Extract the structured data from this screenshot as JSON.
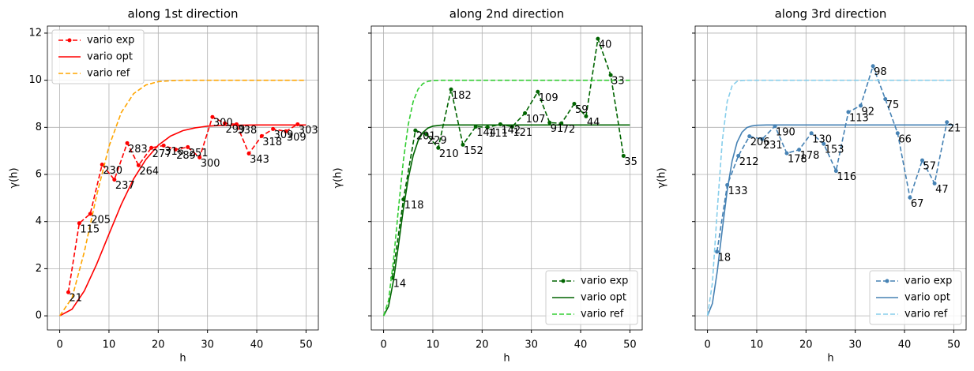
{
  "chart_data": [
    {
      "type": "line",
      "title": "along 1st direction",
      "xlabel": "h",
      "ylabel": "γ(h)",
      "xlim": [
        -2.5,
        52.5
      ],
      "ylim": [
        -0.6,
        12.3
      ],
      "xticks": [
        0,
        10,
        20,
        30,
        40,
        50
      ],
      "yticks": [
        0,
        2,
        4,
        6,
        8,
        10,
        12
      ],
      "ytick_labels": true,
      "grid": true,
      "legend": "upper left",
      "series": [
        {
          "name": "vario exp",
          "color": "#ff0000",
          "dash": "dashed",
          "marker": true,
          "x": [
            1.75,
            3.97,
            6.2,
            8.6,
            11.1,
            13.7,
            16.0,
            18.6,
            21.1,
            23.5,
            26.0,
            28.4,
            31.0,
            33.5,
            35.9,
            38.4,
            41.0,
            43.3,
            45.9,
            48.3
          ],
          "values": [
            1.0,
            3.93,
            4.33,
            6.42,
            5.78,
            7.33,
            6.39,
            7.13,
            7.23,
            7.06,
            7.16,
            6.72,
            8.44,
            8.17,
            8.13,
            6.89,
            7.63,
            7.93,
            7.83,
            8.13
          ],
          "counts": [
            21,
            115,
            205,
            230,
            237,
            283,
            264,
            277,
            316,
            289,
            251,
            300,
            300,
            299,
            338,
            343,
            318,
            309,
            309,
            303
          ]
        },
        {
          "name": "vario opt",
          "color": "#ff0000",
          "dash": "solid",
          "marker": false,
          "x": [
            0,
            2.5,
            5,
            7.5,
            10,
            12.5,
            15,
            17.5,
            20,
            22.5,
            25,
            27.5,
            30,
            32.5,
            35,
            40,
            45,
            50
          ],
          "values": [
            0,
            0.28,
            1.06,
            2.19,
            3.47,
            4.73,
            5.81,
            6.64,
            7.24,
            7.63,
            7.86,
            7.98,
            8.05,
            8.08,
            8.09,
            8.1,
            8.1,
            8.1
          ]
        },
        {
          "name": "vario ref",
          "color": "#ffa500",
          "dash": "dashed",
          "marker": false,
          "x": [
            0,
            2.5,
            5,
            7.5,
            10,
            12.5,
            15,
            17.5,
            20,
            22.5,
            25,
            27.5,
            30,
            32.5,
            35,
            40,
            45,
            50
          ],
          "values": [
            0,
            0.76,
            2.72,
            5.11,
            7.19,
            8.63,
            9.43,
            9.8,
            9.94,
            9.98,
            10,
            10,
            10,
            10,
            10,
            10,
            10,
            10
          ]
        }
      ]
    },
    {
      "type": "line",
      "title": "along 2nd direction",
      "xlabel": "h",
      "ylabel": "γ(h)",
      "xlim": [
        -2.5,
        52.5
      ],
      "ylim": [
        -0.6,
        12.3
      ],
      "xticks": [
        0,
        10,
        20,
        30,
        40,
        50
      ],
      "yticks": [
        0,
        2,
        4,
        6,
        8,
        10,
        12
      ],
      "ytick_labels": false,
      "grid": true,
      "legend": "lower right",
      "series": [
        {
          "name": "vario exp",
          "color": "#006400",
          "dash": "dashed",
          "marker": true,
          "x": [
            1.77,
            4.03,
            6.45,
            8.7,
            11.1,
            13.7,
            16.1,
            18.7,
            21.1,
            23.7,
            26.1,
            28.7,
            31.3,
            33.7,
            36.1,
            38.7,
            41.1,
            43.5,
            46.1,
            48.7
          ],
          "values": [
            1.61,
            4.94,
            7.87,
            7.7,
            7.13,
            9.61,
            7.26,
            8.03,
            8.0,
            8.13,
            8.03,
            8.6,
            9.51,
            8.2,
            8.17,
            9.0,
            8.47,
            11.76,
            10.22,
            6.79
          ],
          "counts": [
            14,
            118,
            201,
            229,
            210,
            182,
            152,
            144,
            111,
            142,
            121,
            107,
            109,
            91,
            72,
            59,
            44,
            40,
            33,
            35
          ]
        },
        {
          "name": "vario opt",
          "color": "#006400",
          "dash": "solid",
          "marker": false,
          "x": [
            0,
            1,
            2,
            3,
            4,
            5,
            6,
            7,
            8,
            9,
            10,
            12,
            15,
            20,
            30,
            40,
            50
          ],
          "values": [
            0,
            0.4,
            1.49,
            2.97,
            4.51,
            5.82,
            6.8,
            7.43,
            7.79,
            7.97,
            8.05,
            8.1,
            8.1,
            8.1,
            8.1,
            8.1,
            8.1
          ]
        },
        {
          "name": "vario ref",
          "color": "#32cd32",
          "dash": "dashed",
          "marker": false,
          "x": [
            0,
            1,
            2,
            3,
            4,
            5,
            6,
            7,
            8,
            9,
            10,
            12,
            15,
            20,
            30,
            40,
            50
          ],
          "values": [
            0,
            0.65,
            2.34,
            4.51,
            6.56,
            8.11,
            9.09,
            9.62,
            9.86,
            9.95,
            9.99,
            10,
            10,
            10,
            10,
            10,
            10
          ]
        }
      ]
    },
    {
      "type": "line",
      "title": "along 3rd direction",
      "xlabel": "h",
      "ylabel": "γ(h)",
      "xlim": [
        -2.5,
        52.5
      ],
      "ylim": [
        -0.6,
        12.3
      ],
      "xticks": [
        0,
        10,
        20,
        30,
        40,
        50
      ],
      "yticks": [
        0,
        2,
        4,
        6,
        8,
        10,
        12
      ],
      "ytick_labels": false,
      "grid": true,
      "legend": "lower right",
      "series": [
        {
          "name": "vario exp",
          "color": "#4682b4",
          "dash": "dashed",
          "marker": true,
          "x": [
            1.93,
            4.02,
            6.27,
            8.52,
            11.1,
            13.7,
            16.1,
            18.6,
            21.1,
            23.6,
            26.1,
            28.6,
            31.1,
            33.6,
            36.1,
            38.6,
            41.1,
            43.6,
            46.1,
            48.6
          ],
          "values": [
            2.72,
            5.55,
            6.79,
            7.62,
            7.5,
            8.05,
            6.9,
            7.05,
            7.75,
            7.3,
            6.15,
            8.65,
            8.92,
            10.6,
            9.2,
            7.75,
            5.02,
            6.6,
            5.62,
            8.22
          ],
          "counts": [
            18,
            133,
            212,
            206,
            231,
            190,
            178,
            178,
            130,
            153,
            116,
            113,
            92,
            98,
            75,
            66,
            67,
            57,
            47,
            21
          ]
        },
        {
          "name": "vario opt",
          "color": "#4682b4",
          "dash": "solid",
          "marker": false,
          "x": [
            0,
            1,
            2,
            3,
            4,
            5,
            6,
            7,
            8,
            9,
            10,
            12,
            15,
            20,
            30,
            40,
            50
          ],
          "values": [
            0,
            0.52,
            1.9,
            3.65,
            5.31,
            6.57,
            7.36,
            7.79,
            7.99,
            8.06,
            8.09,
            8.1,
            8.1,
            8.1,
            8.1,
            8.1,
            8.1
          ]
        },
        {
          "name": "vario ref",
          "color": "#87ceeb",
          "dash": "dashed",
          "marker": false,
          "x": [
            0,
            1,
            2,
            3,
            4,
            5,
            6,
            7,
            8,
            9,
            10,
            12,
            15,
            20,
            30,
            40,
            50
          ],
          "values": [
            0,
            1.39,
            4.51,
            7.41,
            9.09,
            9.76,
            9.95,
            9.99,
            10,
            10,
            10,
            10,
            10,
            10,
            10,
            10,
            10
          ]
        }
      ]
    }
  ]
}
